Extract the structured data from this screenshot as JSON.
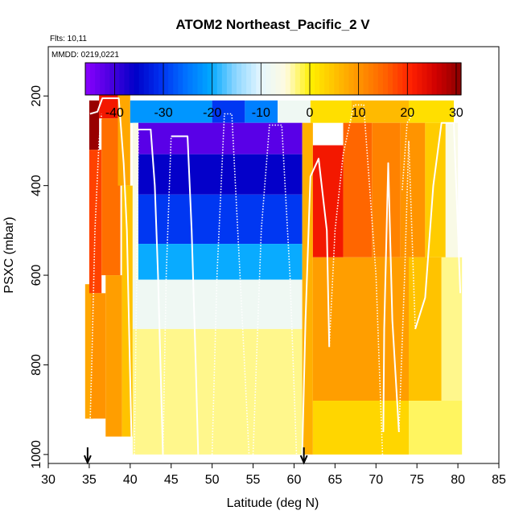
{
  "chart_data": {
    "type": "heatmap",
    "title": "ATOM2 Northeast_Pacific_2 V",
    "annotations": {
      "flights": "Flts: 10,11",
      "dates": "MMDD: 0219,0221"
    },
    "xlabel": "Latitude (deg N)",
    "ylabel": "PSXC (mbar)",
    "xlim": [
      30,
      85
    ],
    "ylim": [
      1020,
      90
    ],
    "x_ticks": [
      30,
      35,
      40,
      45,
      50,
      55,
      60,
      65,
      70,
      75,
      80,
      85
    ],
    "y_ticks": [
      200,
      400,
      600,
      800,
      1000
    ],
    "colorbar": {
      "range": [
        -46,
        31
      ],
      "ticks": [
        -40,
        -30,
        -20,
        -10,
        0,
        10,
        20,
        30
      ],
      "colors": [
        "#8a00ff",
        "#4b00e0",
        "#0000c8",
        "#0030f0",
        "#0070ff",
        "#00a8ff",
        "#8cd6ff",
        "#e4f6ff",
        "#fffbe0",
        "#fff000",
        "#ffc000",
        "#ff9000",
        "#ff6000",
        "#ff2000",
        "#d00000",
        "#8a0000"
      ]
    },
    "regions": [
      {
        "lat": [
          34.5,
          35.5
        ],
        "p": [
          620,
          920
        ],
        "v": 8
      },
      {
        "lat": [
          35.0,
          36.2
        ],
        "p": [
          210,
          320
        ],
        "v": 30
      },
      {
        "lat": [
          35.0,
          36.5
        ],
        "p": [
          320,
          640
        ],
        "v": 18
      },
      {
        "lat": [
          35.2,
          37.0
        ],
        "p": [
          640,
          920
        ],
        "v": 10
      },
      {
        "lat": [
          36.2,
          38.5
        ],
        "p": [
          170,
          250
        ],
        "v": 22
      },
      {
        "lat": [
          36.5,
          38.8
        ],
        "p": [
          250,
          600
        ],
        "v": 14
      },
      {
        "lat": [
          37.0,
          39.0
        ],
        "p": [
          600,
          960
        ],
        "v": 9
      },
      {
        "lat": [
          38.5,
          40.0
        ],
        "p": [
          170,
          400
        ],
        "v": 8
      },
      {
        "lat": [
          39.0,
          40.3
        ],
        "p": [
          400,
          960
        ],
        "v": 5
      },
      {
        "lat": [
          40.0,
          50.0
        ],
        "p": [
          210,
          260
        ],
        "v": -22
      },
      {
        "lat": [
          50.0,
          54.0
        ],
        "p": [
          210,
          260
        ],
        "v": -30
      },
      {
        "lat": [
          54.0,
          58.0
        ],
        "p": [
          210,
          260
        ],
        "v": -24
      },
      {
        "lat": [
          58.0,
          62.0
        ],
        "p": [
          210,
          260
        ],
        "v": -8
      },
      {
        "lat": [
          62.0,
          67.0
        ],
        "p": [
          210,
          260
        ],
        "v": 2
      },
      {
        "lat": [
          67.0,
          74.0
        ],
        "p": [
          210,
          260
        ],
        "v": 6
      },
      {
        "lat": [
          74.0,
          79.5
        ],
        "p": [
          210,
          260
        ],
        "v": 2
      },
      {
        "lat": [
          41.0,
          61.0
        ],
        "p": [
          260,
          330
        ],
        "v": -42
      },
      {
        "lat": [
          41.0,
          61.0
        ],
        "p": [
          330,
          420
        ],
        "v": -36
      },
      {
        "lat": [
          41.0,
          61.0
        ],
        "p": [
          420,
          530
        ],
        "v": -30
      },
      {
        "lat": [
          41.0,
          61.0
        ],
        "p": [
          530,
          610
        ],
        "v": -20
      },
      {
        "lat": [
          40.3,
          41.0
        ],
        "p": [
          260,
          610
        ],
        "v": -6
      },
      {
        "lat": [
          40.3,
          61.0
        ],
        "p": [
          610,
          720
        ],
        "v": -8
      },
      {
        "lat": [
          40.3,
          61.0
        ],
        "p": [
          720,
          1000
        ],
        "v": -3
      },
      {
        "lat": [
          61.0,
          62.3
        ],
        "p": [
          260,
          1000
        ],
        "v": 7
      },
      {
        "lat": [
          62.3,
          66.0
        ],
        "p": [
          310,
          560
        ],
        "v": 22
      },
      {
        "lat": [
          66.0,
          69.5
        ],
        "p": [
          260,
          560
        ],
        "v": 15
      },
      {
        "lat": [
          69.5,
          73.0
        ],
        "p": [
          260,
          560
        ],
        "v": 12
      },
      {
        "lat": [
          73.0,
          76.0
        ],
        "p": [
          260,
          560
        ],
        "v": 10
      },
      {
        "lat": [
          76.0,
          78.5
        ],
        "p": [
          260,
          560
        ],
        "v": 4
      },
      {
        "lat": [
          78.5,
          80.0
        ],
        "p": [
          260,
          560
        ],
        "v": -6
      },
      {
        "lat": [
          62.3,
          74.0
        ],
        "p": [
          560,
          880
        ],
        "v": 9
      },
      {
        "lat": [
          74.0,
          78.0
        ],
        "p": [
          560,
          880
        ],
        "v": 5
      },
      {
        "lat": [
          78.0,
          80.5
        ],
        "p": [
          560,
          880
        ],
        "v": -3
      },
      {
        "lat": [
          62.3,
          74.0
        ],
        "p": [
          880,
          1000
        ],
        "v": 3
      },
      {
        "lat": [
          74.0,
          80.5
        ],
        "p": [
          880,
          1000
        ],
        "v": -2
      }
    ],
    "flight_tracks": [
      {
        "style": "solid",
        "points": [
          [
            35.1,
            240
          ],
          [
            36.0,
            235
          ],
          [
            36.6,
            205
          ],
          [
            38.6,
            205
          ],
          [
            39.2,
            350
          ],
          [
            39.6,
            500
          ],
          [
            40.2,
            1000
          ]
        ]
      },
      {
        "style": "dotted",
        "points": [
          [
            35.0,
            1000
          ],
          [
            35.3,
            800
          ],
          [
            35.7,
            500
          ],
          [
            36.2,
            300
          ],
          [
            36.5,
            240
          ]
        ]
      },
      {
        "style": "solid",
        "points": [
          [
            41.0,
            275
          ],
          [
            42.5,
            275
          ],
          [
            43.0,
            400
          ],
          [
            43.4,
            600
          ],
          [
            44.0,
            1000
          ]
        ]
      },
      {
        "style": "dotted",
        "points": [
          [
            40.5,
            1000
          ],
          [
            40.8,
            600
          ],
          [
            41.0,
            275
          ]
        ]
      },
      {
        "style": "solid",
        "points": [
          [
            45.0,
            290
          ],
          [
            47.0,
            290
          ],
          [
            47.5,
            500
          ],
          [
            48.0,
            800
          ],
          [
            48.3,
            1000
          ]
        ]
      },
      {
        "style": "dotted",
        "points": [
          [
            44.0,
            1000
          ],
          [
            44.4,
            600
          ],
          [
            45.0,
            290
          ]
        ]
      },
      {
        "style": "dotted",
        "points": [
          [
            50.0,
            1000
          ],
          [
            50.6,
            600
          ],
          [
            51.5,
            240
          ],
          [
            52.4,
            240
          ],
          [
            53.4,
            600
          ],
          [
            54.5,
            1000
          ]
        ]
      },
      {
        "style": "dotted",
        "points": [
          [
            55.0,
            1000
          ],
          [
            56.0,
            500
          ],
          [
            57.0,
            265
          ],
          [
            58.5,
            265
          ],
          [
            59.5,
            600
          ],
          [
            60.3,
            1000
          ]
        ]
      },
      {
        "style": "solid",
        "points": [
          [
            61.0,
            1000
          ],
          [
            61.4,
            700
          ],
          [
            62.0,
            380
          ],
          [
            63.0,
            340
          ],
          [
            64.0,
            500
          ],
          [
            64.3,
            760
          ]
        ]
      },
      {
        "style": "dotted",
        "points": [
          [
            64.3,
            760
          ],
          [
            65.0,
            500
          ],
          [
            66.0,
            330
          ],
          [
            67.3,
            220
          ],
          [
            68.5,
            220
          ],
          [
            70.0,
            600
          ],
          [
            70.8,
            1000
          ]
        ]
      },
      {
        "style": "solid",
        "points": [
          [
            70.9,
            950
          ],
          [
            71.0,
            720
          ],
          [
            71.5,
            350
          ],
          [
            72.0,
            700
          ],
          [
            72.8,
            950
          ]
        ]
      },
      {
        "style": "dotted",
        "points": [
          [
            72.8,
            950
          ],
          [
            73.5,
            600
          ],
          [
            74.0,
            300
          ],
          [
            74.8,
            720
          ]
        ]
      },
      {
        "style": "solid",
        "points": [
          [
            74.8,
            720
          ],
          [
            76.0,
            650
          ],
          [
            77.0,
            400
          ],
          [
            78.0,
            260
          ],
          [
            79.5,
            260
          ],
          [
            80.3,
            640
          ]
        ]
      },
      {
        "style": "dotted",
        "points": [
          [
            73.2,
            410
          ],
          [
            73.8,
            260
          ],
          [
            74.5,
            240
          ]
        ]
      }
    ],
    "markers": [
      {
        "lat": 34.8,
        "label": "flight-10-start-arrow"
      },
      {
        "lat": 61.2,
        "label": "flight-11-start-arrow"
      }
    ]
  }
}
